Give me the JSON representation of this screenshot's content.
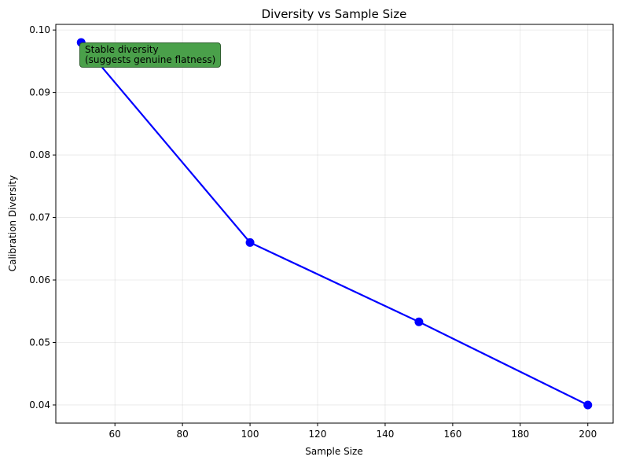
{
  "chart_data": {
    "type": "line",
    "title": "Diversity vs Sample Size",
    "xlabel": "Sample Size",
    "ylabel": "Calibration Diversity",
    "x": [
      50,
      100,
      150,
      200
    ],
    "series": [
      {
        "values": [
          0.098,
          0.066,
          0.0533,
          0.04
        ],
        "color": "#0000ff"
      }
    ],
    "xlim": [
      42.5,
      207.5
    ],
    "ylim": [
      0.0371,
      0.1009
    ],
    "xticks": [
      60,
      80,
      100,
      120,
      140,
      160,
      180,
      200
    ],
    "yticks": [
      0.04,
      0.05,
      0.06,
      0.07,
      0.08,
      0.09,
      0.1
    ],
    "yticks_labels": [
      "0.04",
      "0.05",
      "0.06",
      "0.07",
      "0.08",
      "0.09",
      "0.10"
    ],
    "grid": true,
    "annotation": {
      "lines": [
        "Stable diversity",
        "(suggests genuine flatness)"
      ],
      "color": "#4aa04a"
    }
  }
}
